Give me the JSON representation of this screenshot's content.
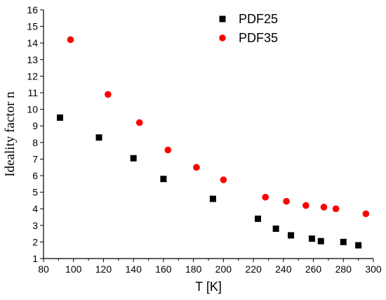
{
  "chart_data": {
    "type": "scatter",
    "xlabel": "T [K]",
    "ylabel": "Ideality factor n",
    "xlim": [
      80,
      300
    ],
    "ylim": [
      1,
      16
    ],
    "xticks": [
      80,
      100,
      120,
      140,
      160,
      180,
      200,
      220,
      240,
      260,
      280,
      300
    ],
    "yticks": [
      1,
      2,
      3,
      4,
      5,
      6,
      7,
      8,
      9,
      10,
      11,
      12,
      13,
      14,
      15,
      16
    ],
    "grid": false,
    "legend_position": "top-center",
    "series": [
      {
        "name": "PDF25",
        "marker": "square",
        "color": "#000000",
        "x": [
          91,
          117,
          140,
          160,
          193,
          223,
          235,
          245,
          259,
          265,
          280,
          290
        ],
        "y": [
          9.5,
          8.3,
          7.05,
          5.8,
          4.6,
          3.4,
          2.8,
          2.4,
          2.2,
          2.05,
          2.0,
          1.8
        ]
      },
      {
        "name": "PDF35",
        "marker": "circle",
        "color": "#ff0000",
        "x": [
          98,
          123,
          144,
          163,
          182,
          200,
          228,
          242,
          255,
          267,
          275,
          295
        ],
        "y": [
          14.2,
          10.9,
          9.2,
          7.55,
          6.5,
          5.75,
          4.7,
          4.45,
          4.2,
          4.1,
          4.0,
          3.7
        ]
      }
    ]
  }
}
